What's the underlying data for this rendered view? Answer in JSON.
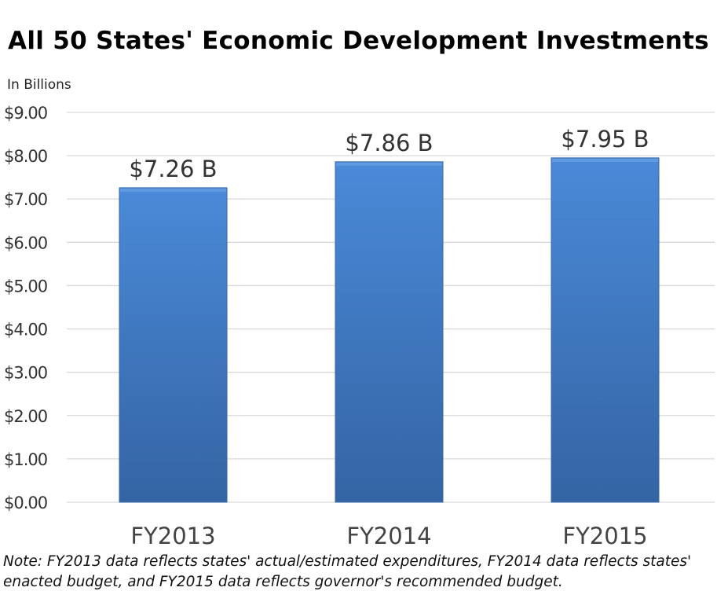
{
  "chart_data": {
    "type": "bar",
    "title": "All 50 States' Economic Development Investments",
    "ylabel": "In Billions",
    "xlabel": "",
    "categories": [
      "FY2013",
      "FY2014",
      "FY2015"
    ],
    "values": [
      7.26,
      7.86,
      7.95
    ],
    "data_labels": [
      "$7.26 B",
      "$7.86 B",
      "$7.95 B"
    ],
    "ylim": [
      0,
      9
    ],
    "yticks": [
      "$0.00",
      "$1.00",
      "$2.00",
      "$3.00",
      "$4.00",
      "$5.00",
      "$6.00",
      "$7.00",
      "$8.00",
      "$9.00"
    ],
    "grid": true,
    "legend": "none",
    "colors": {
      "bar_top": "#4a8ad8",
      "bar_bottom": "#3464a4",
      "grid": "#d9d9d9"
    }
  },
  "note": "Note: FY2013 data reflects states' actual/estimated expenditures, FY2014 data reflects states' enacted budget, and FY2015 data reflects governor's recommended budget."
}
